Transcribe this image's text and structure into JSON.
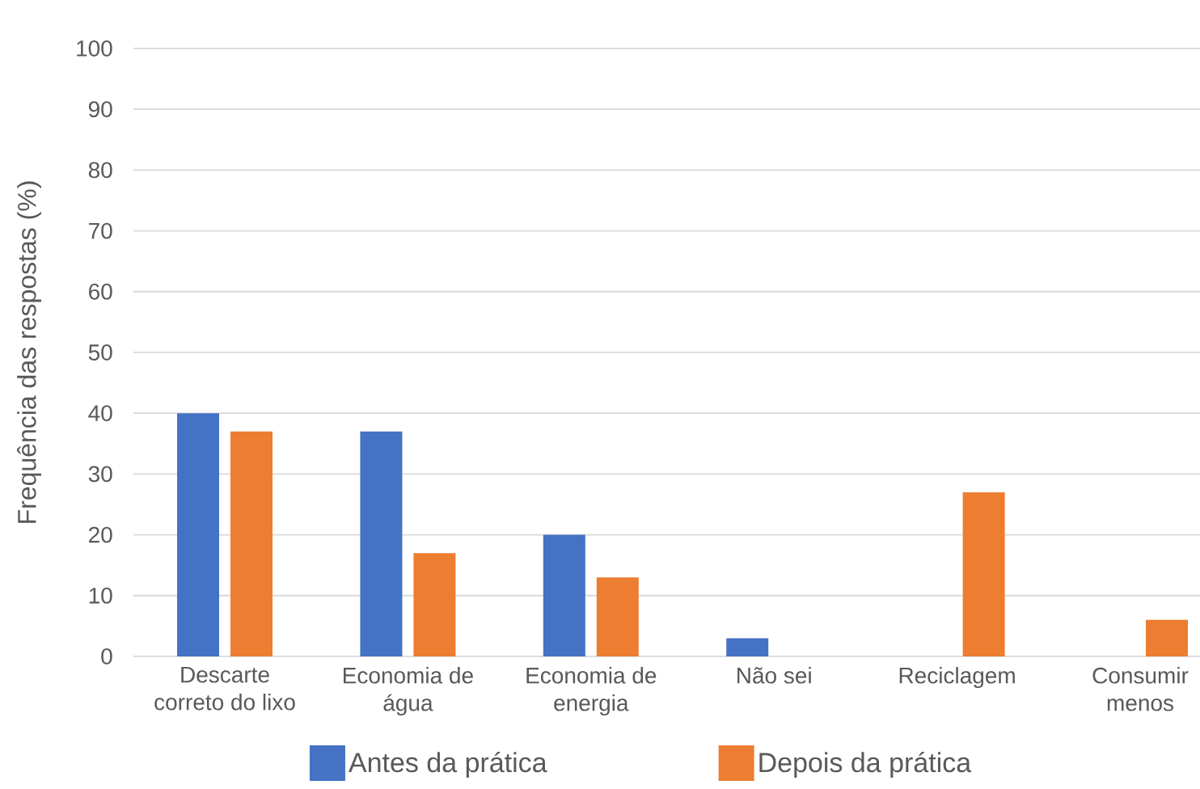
{
  "chart_data": {
    "type": "bar",
    "ylabel": "Frequência das respostas (%)",
    "categories": [
      "Descarte correto do lixo",
      "Economia de água",
      "Economia de energia",
      "Não sei",
      "Reciclagem",
      "Consumir menos"
    ],
    "series": [
      {
        "name": "Antes da prática",
        "color": "#4472c4",
        "values": [
          40,
          37,
          20,
          3,
          0,
          0
        ]
      },
      {
        "name": "Depois da prática",
        "color": "#ed7d31",
        "values": [
          37,
          17,
          13,
          0,
          27,
          6
        ]
      }
    ],
    "ylim": [
      0,
      100
    ],
    "yticks": [
      0,
      10,
      20,
      30,
      40,
      50,
      60,
      70,
      80,
      90,
      100
    ],
    "grid": "y",
    "legend": "bottom"
  }
}
